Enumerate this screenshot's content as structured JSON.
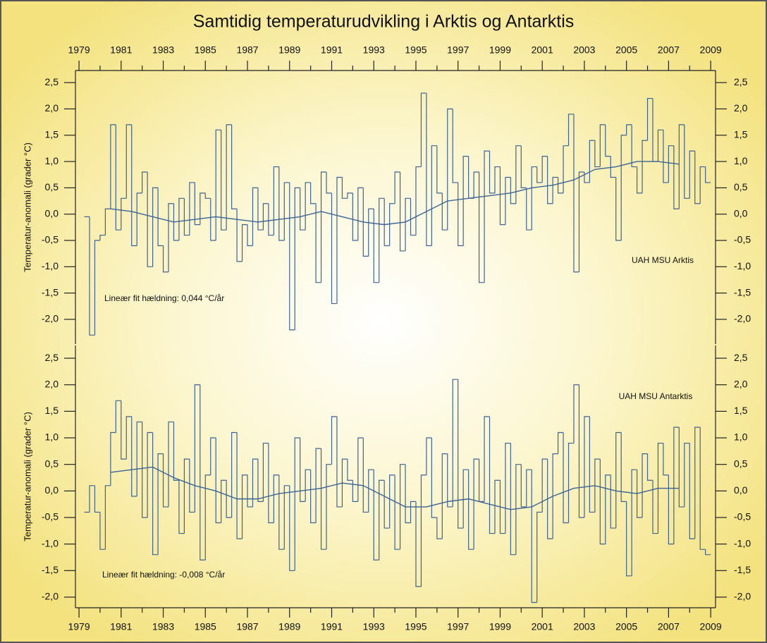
{
  "chart_data": [
    {
      "type": "line",
      "title": "Samtidig temperaturudvikling i Arktis og Antarktis",
      "ylabel": "Temperatur-anomali (grader °C)",
      "xaxis_position": "top",
      "annotations": [
        "UAH MSU Arktis",
        "Lineær fit hældning: 0,044 °C/år"
      ],
      "xlim": [
        1978.83,
        2009.23
      ],
      "ylim": [
        -2.47,
        2.73
      ],
      "xticks": [
        1979,
        1981,
        1983,
        1985,
        1987,
        1989,
        1991,
        1993,
        1995,
        1997,
        1999,
        2001,
        2003,
        2005,
        2007,
        2009
      ],
      "xminor_ticks": [
        1980,
        1982,
        1984,
        1986,
        1988,
        1990,
        1992,
        1994,
        1996,
        1998,
        2000,
        2002,
        2004,
        2006,
        2008
      ],
      "yticks": [
        {
          "value": 2.5,
          "label": "2,5"
        },
        {
          "value": 2,
          "label": "2,0"
        },
        {
          "value": 1.5,
          "label": "1,5"
        },
        {
          "value": 1,
          "label": "1,0"
        },
        {
          "value": 0.5,
          "label": "0,5"
        },
        {
          "value": 0,
          "label": "0,0"
        },
        {
          "value": -0.5,
          "label": "-0,5"
        },
        {
          "value": -1,
          "label": "-1,0"
        },
        {
          "value": -1.5,
          "label": "-1,5"
        },
        {
          "value": -2,
          "label": "-2,0"
        }
      ],
      "series": [
        {
          "color": "#3d6496",
          "step": true,
          "x": [
            1979.25,
            1979.5,
            1979.75,
            1980,
            1980.25,
            1980.5,
            1980.75,
            1981,
            1981.25,
            1981.5,
            1981.75,
            1982,
            1982.25,
            1982.5,
            1982.75,
            1983,
            1983.25,
            1983.5,
            1983.75,
            1984,
            1984.25,
            1984.5,
            1984.75,
            1985,
            1985.25,
            1985.5,
            1985.75,
            1986,
            1986.25,
            1986.5,
            1986.75,
            1987,
            1987.25,
            1987.5,
            1987.75,
            1988,
            1988.25,
            1988.5,
            1988.75,
            1989,
            1989.25,
            1989.5,
            1989.75,
            1990,
            1990.25,
            1990.5,
            1990.75,
            1991,
            1991.25,
            1991.5,
            1991.75,
            1992,
            1992.25,
            1992.5,
            1992.75,
            1993,
            1993.25,
            1993.5,
            1993.75,
            1994,
            1994.25,
            1994.5,
            1994.75,
            1995,
            1995.25,
            1995.5,
            1995.75,
            1996,
            1996.25,
            1996.5,
            1996.75,
            1997,
            1997.25,
            1997.5,
            1997.75,
            1998,
            1998.25,
            1998.5,
            1998.75,
            1999,
            1999.25,
            1999.5,
            1999.75,
            2000,
            2000.25,
            2000.5,
            2000.75,
            2001,
            2001.25,
            2001.5,
            2001.75,
            2002,
            2002.25,
            2002.5,
            2002.75,
            2003,
            2003.25,
            2003.5,
            2003.75,
            2004,
            2004.25,
            2004.5,
            2004.75,
            2005,
            2005.25,
            2005.5,
            2005.75,
            2006,
            2006.25,
            2006.5,
            2006.75,
            2007,
            2007.25,
            2007.5,
            2007.75,
            2008,
            2008.25,
            2008.5,
            2008.75
          ],
          "values": [
            -0.05,
            -2.3,
            -0.5,
            -0.4,
            0.1,
            1.7,
            -0.3,
            0.3,
            1.7,
            -0.6,
            0.4,
            0.8,
            -1.0,
            0.5,
            -0.6,
            -1.1,
            0.2,
            -0.5,
            0.3,
            -0.4,
            0.6,
            -0.2,
            0.4,
            0.3,
            -0.5,
            1.6,
            -0.3,
            1.7,
            0.1,
            -0.9,
            -0.2,
            -0.6,
            0.5,
            -0.3,
            0.2,
            -0.4,
            0.9,
            -0.5,
            0.6,
            -2.2,
            0.5,
            -0.3,
            0.6,
            0.2,
            -1.3,
            0.8,
            0.4,
            -1.7,
            0.7,
            0.3,
            0.4,
            -0.5,
            0.5,
            -0.8,
            0.1,
            -1.3,
            0.3,
            -0.6,
            0.2,
            0.8,
            -0.7,
            0.3,
            -0.4,
            0.9,
            2.3,
            -0.6,
            1.3,
            0.4,
            -0.3,
            2.0,
            0.6,
            -0.6,
            1.1,
            0.3,
            0.8,
            -1.3,
            1.2,
            0.4,
            0.9,
            -0.2,
            0.7,
            0.2,
            1.3,
            0.5,
            -0.3,
            0.9,
            0.6,
            1.1,
            0.2,
            0.7,
            0.4,
            1.3,
            1.9,
            -1.1,
            0.8,
            0.6,
            1.4,
            0.9,
            1.7,
            1.1,
            0.7,
            -0.5,
            1.5,
            1.7,
            0.9,
            0.4,
            1.4,
            2.2,
            1.0,
            1.6,
            0.6,
            1.3,
            0.1,
            1.7,
            0.3,
            1.2,
            0.2,
            0.9,
            0.6
          ]
        },
        {
          "color": "#3d6496",
          "step": false,
          "x": [
            1980.5,
            1981.5,
            1982.5,
            1983.5,
            1984.5,
            1985.5,
            1986.5,
            1987.5,
            1988.5,
            1989.5,
            1990.5,
            1991.5,
            1992.5,
            1993.5,
            1994.5,
            1995.5,
            1996.5,
            1997.5,
            1998.5,
            1999.5,
            2000.5,
            2001.5,
            2002.5,
            2003.5,
            2004.5,
            2005.5,
            2006.5,
            2007.5
          ],
          "values": [
            0.1,
            0.05,
            -0.05,
            -0.15,
            -0.1,
            -0.05,
            -0.1,
            -0.15,
            -0.1,
            -0.05,
            0.05,
            -0.05,
            -0.15,
            -0.2,
            -0.15,
            0.05,
            0.25,
            0.3,
            0.35,
            0.4,
            0.5,
            0.55,
            0.65,
            0.85,
            0.9,
            1.0,
            1.0,
            0.95
          ]
        }
      ]
    },
    {
      "type": "line",
      "ylabel": "Temperatur-anomali (grader °C)",
      "xaxis_position": "bottom",
      "annotations": [
        "UAH MSU Antarktis",
        "Lineær fit hældning: -0,008 °C/år"
      ],
      "xlim": [
        1978.83,
        2009.23
      ],
      "ylim": [
        -2.2,
        2.74
      ],
      "xticks": [
        1979,
        1981,
        1983,
        1985,
        1987,
        1989,
        1991,
        1993,
        1995,
        1997,
        1999,
        2001,
        2003,
        2005,
        2007,
        2009
      ],
      "xminor_ticks": [
        1980,
        1982,
        1984,
        1986,
        1988,
        1990,
        1992,
        1994,
        1996,
        1998,
        2000,
        2002,
        2004,
        2006,
        2008
      ],
      "yticks": [
        {
          "value": 2.5,
          "label": "2,5"
        },
        {
          "value": 2,
          "label": "2,0"
        },
        {
          "value": 1.5,
          "label": "1,5"
        },
        {
          "value": 1,
          "label": "1,0"
        },
        {
          "value": 0.5,
          "label": "0,5"
        },
        {
          "value": 0,
          "label": "0,0"
        },
        {
          "value": -0.5,
          "label": "-0,5"
        },
        {
          "value": -1,
          "label": "-1,0"
        },
        {
          "value": -1.5,
          "label": "-1,5"
        },
        {
          "value": -2,
          "label": "-2,0"
        }
      ],
      "series": [
        {
          "color": "#3d6496",
          "step": true,
          "x": [
            1979.25,
            1979.5,
            1979.75,
            1980,
            1980.25,
            1980.5,
            1980.75,
            1981,
            1981.25,
            1981.5,
            1981.75,
            1982,
            1982.25,
            1982.5,
            1982.75,
            1983,
            1983.25,
            1983.5,
            1983.75,
            1984,
            1984.25,
            1984.5,
            1984.75,
            1985,
            1985.25,
            1985.5,
            1985.75,
            1986,
            1986.25,
            1986.5,
            1986.75,
            1987,
            1987.25,
            1987.5,
            1987.75,
            1988,
            1988.25,
            1988.5,
            1988.75,
            1989,
            1989.25,
            1989.5,
            1989.75,
            1990,
            1990.25,
            1990.5,
            1990.75,
            1991,
            1991.25,
            1991.5,
            1991.75,
            1992,
            1992.25,
            1992.5,
            1992.75,
            1993,
            1993.25,
            1993.5,
            1993.75,
            1994,
            1994.25,
            1994.5,
            1994.75,
            1995,
            1995.25,
            1995.5,
            1995.75,
            1996,
            1996.25,
            1996.5,
            1996.75,
            1997,
            1997.25,
            1997.5,
            1997.75,
            1998,
            1998.25,
            1998.5,
            1998.75,
            1999,
            1999.25,
            1999.5,
            1999.75,
            2000,
            2000.25,
            2000.5,
            2000.75,
            2001,
            2001.25,
            2001.5,
            2001.75,
            2002,
            2002.25,
            2002.5,
            2002.75,
            2003,
            2003.25,
            2003.5,
            2003.75,
            2004,
            2004.25,
            2004.5,
            2004.75,
            2005,
            2005.25,
            2005.5,
            2005.75,
            2006,
            2006.25,
            2006.5,
            2006.75,
            2007,
            2007.25,
            2007.5,
            2007.75,
            2008,
            2008.25,
            2008.5,
            2008.75
          ],
          "values": [
            -0.4,
            0.1,
            -0.4,
            -1.1,
            0.1,
            1.1,
            1.7,
            0.6,
            1.4,
            -0.1,
            1.3,
            -0.5,
            1.1,
            -1.2,
            0.7,
            -0.3,
            1.3,
            0.2,
            -0.8,
            0.6,
            -0.4,
            2.0,
            -1.3,
            0.3,
            1.0,
            -0.6,
            0.2,
            -0.5,
            1.1,
            -0.9,
            0.3,
            -0.3,
            0.6,
            -0.2,
            0.9,
            -0.6,
            0.3,
            -1.1,
            0.1,
            -1.5,
            1.0,
            -0.2,
            0.4,
            -0.6,
            0.8,
            -1.1,
            0.5,
            1.4,
            -0.3,
            0.6,
            0.2,
            -0.2,
            1.0,
            -0.4,
            0.4,
            -1.3,
            0.2,
            -0.7,
            0.3,
            -1.1,
            0.5,
            -0.6,
            -0.2,
            -1.8,
            0.3,
            1.0,
            -0.5,
            -0.9,
            0.7,
            -0.3,
            2.1,
            -0.7,
            0.4,
            -1.1,
            0.6,
            -0.2,
            1.4,
            -0.8,
            0.2,
            -0.8,
            0.9,
            -1.2,
            0.5,
            -0.3,
            0.4,
            -2.1,
            -0.4,
            0.6,
            -0.9,
            0.7,
            1.1,
            -0.6,
            0.9,
            2.0,
            -0.5,
            1.4,
            -0.4,
            0.6,
            -1.0,
            0.3,
            -0.7,
            1.1,
            -0.2,
            -1.6,
            0.4,
            -0.5,
            0.7,
            0.2,
            -0.8,
            0.9,
            0.3,
            -1.0,
            1.2,
            -0.3,
            0.9,
            -0.9,
            1.2,
            -1.1,
            -1.2
          ]
        },
        {
          "color": "#3d6496",
          "step": false,
          "x": [
            1980.5,
            1981.5,
            1982.5,
            1983.5,
            1984.5,
            1985.5,
            1986.5,
            1987.5,
            1988.5,
            1989.5,
            1990.5,
            1991.5,
            1992.5,
            1993.5,
            1994.5,
            1995.5,
            1996.5,
            1997.5,
            1998.5,
            1999.5,
            2000.5,
            2001.5,
            2002.5,
            2003.5,
            2004.5,
            2005.5,
            2006.5,
            2007.5
          ],
          "values": [
            0.35,
            0.4,
            0.45,
            0.25,
            0.1,
            0.0,
            -0.15,
            -0.15,
            -0.05,
            0.0,
            0.05,
            0.15,
            0.1,
            -0.1,
            -0.3,
            -0.3,
            -0.2,
            -0.15,
            -0.25,
            -0.35,
            -0.3,
            -0.1,
            0.05,
            0.1,
            0.0,
            -0.05,
            0.05,
            0.05
          ]
        }
      ]
    }
  ]
}
